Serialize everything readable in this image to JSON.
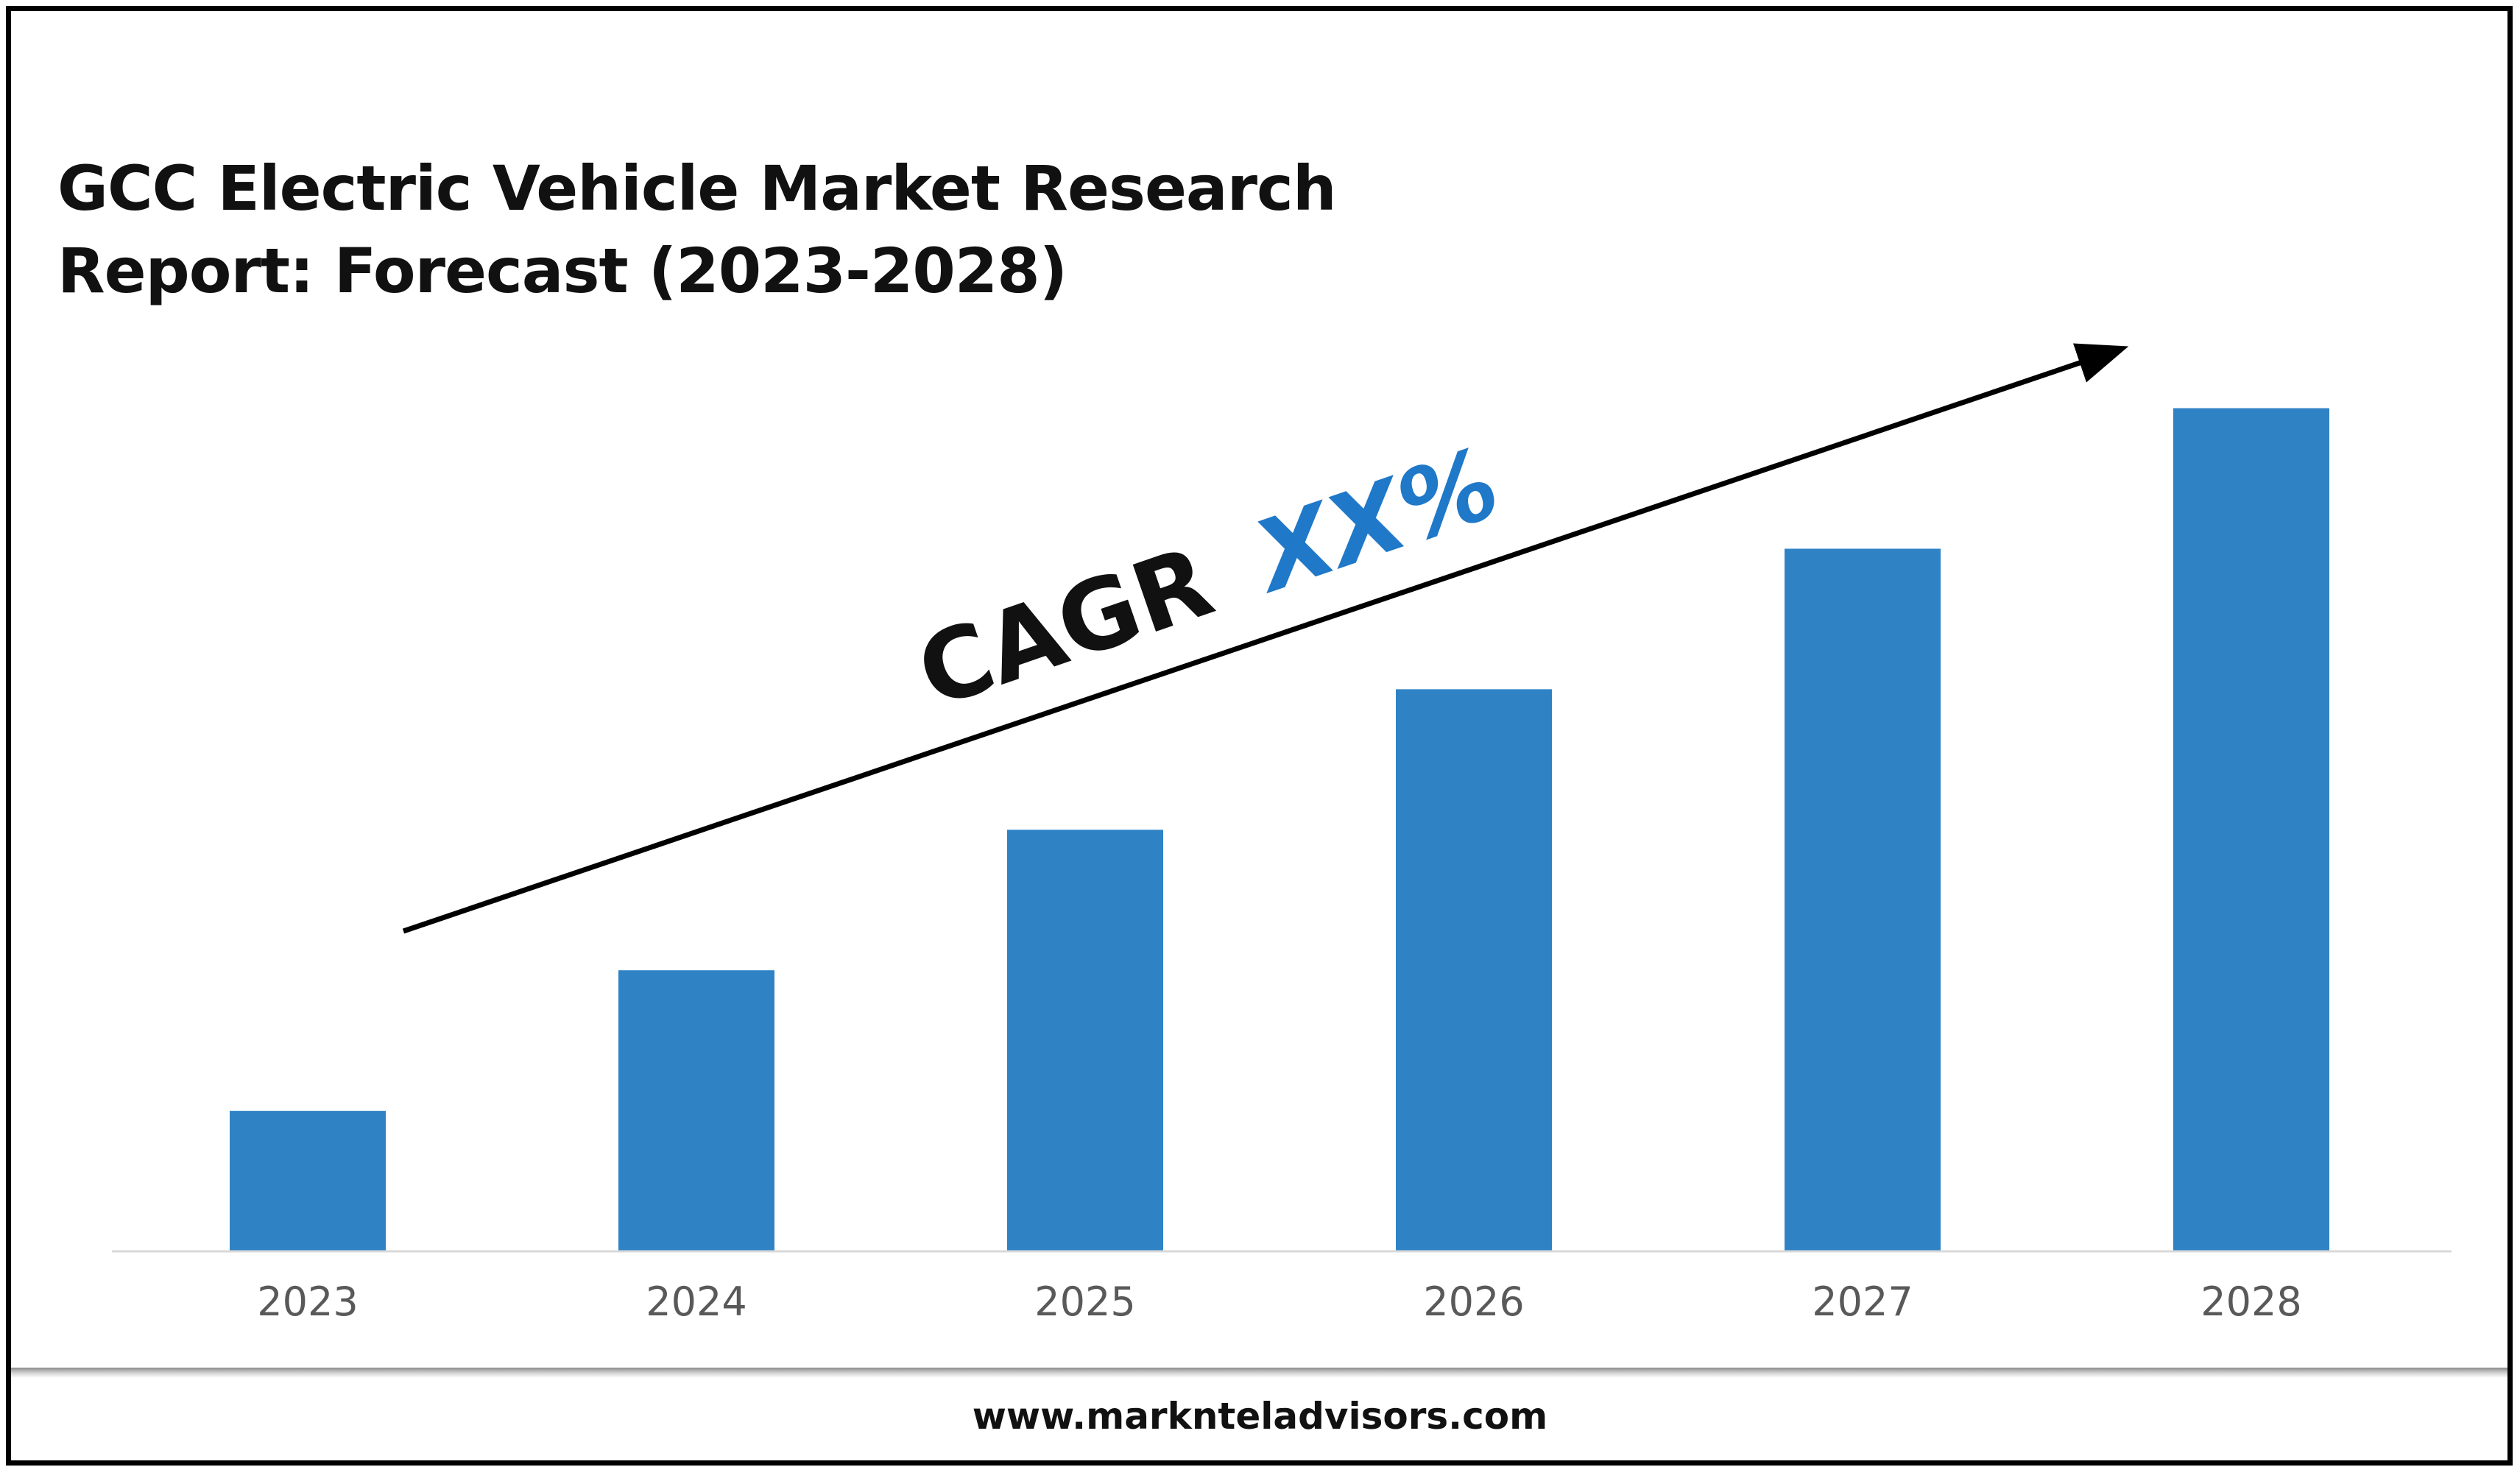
{
  "chart_data": {
    "type": "bar",
    "title_lines": [
      "GCC Electric Vehicle Market Research",
      "Report: Forecast (2023-2028)"
    ],
    "categories": [
      "2023",
      "2024",
      "2025",
      "2026",
      "2027",
      "2028"
    ],
    "values": [
      1,
      2,
      3,
      4,
      5,
      6
    ],
    "ylim": [
      0,
      6.05
    ],
    "xlabel": "",
    "ylabel": "",
    "grid": false,
    "legend": "none",
    "bar_color": "#2F83C5",
    "annotation": {
      "prefix": "CAGR",
      "value": "XX%",
      "prefix_color": "#111111",
      "value_color": "#1F78C8"
    }
  },
  "footer": {
    "website": "www.marknteladvisors.com"
  }
}
